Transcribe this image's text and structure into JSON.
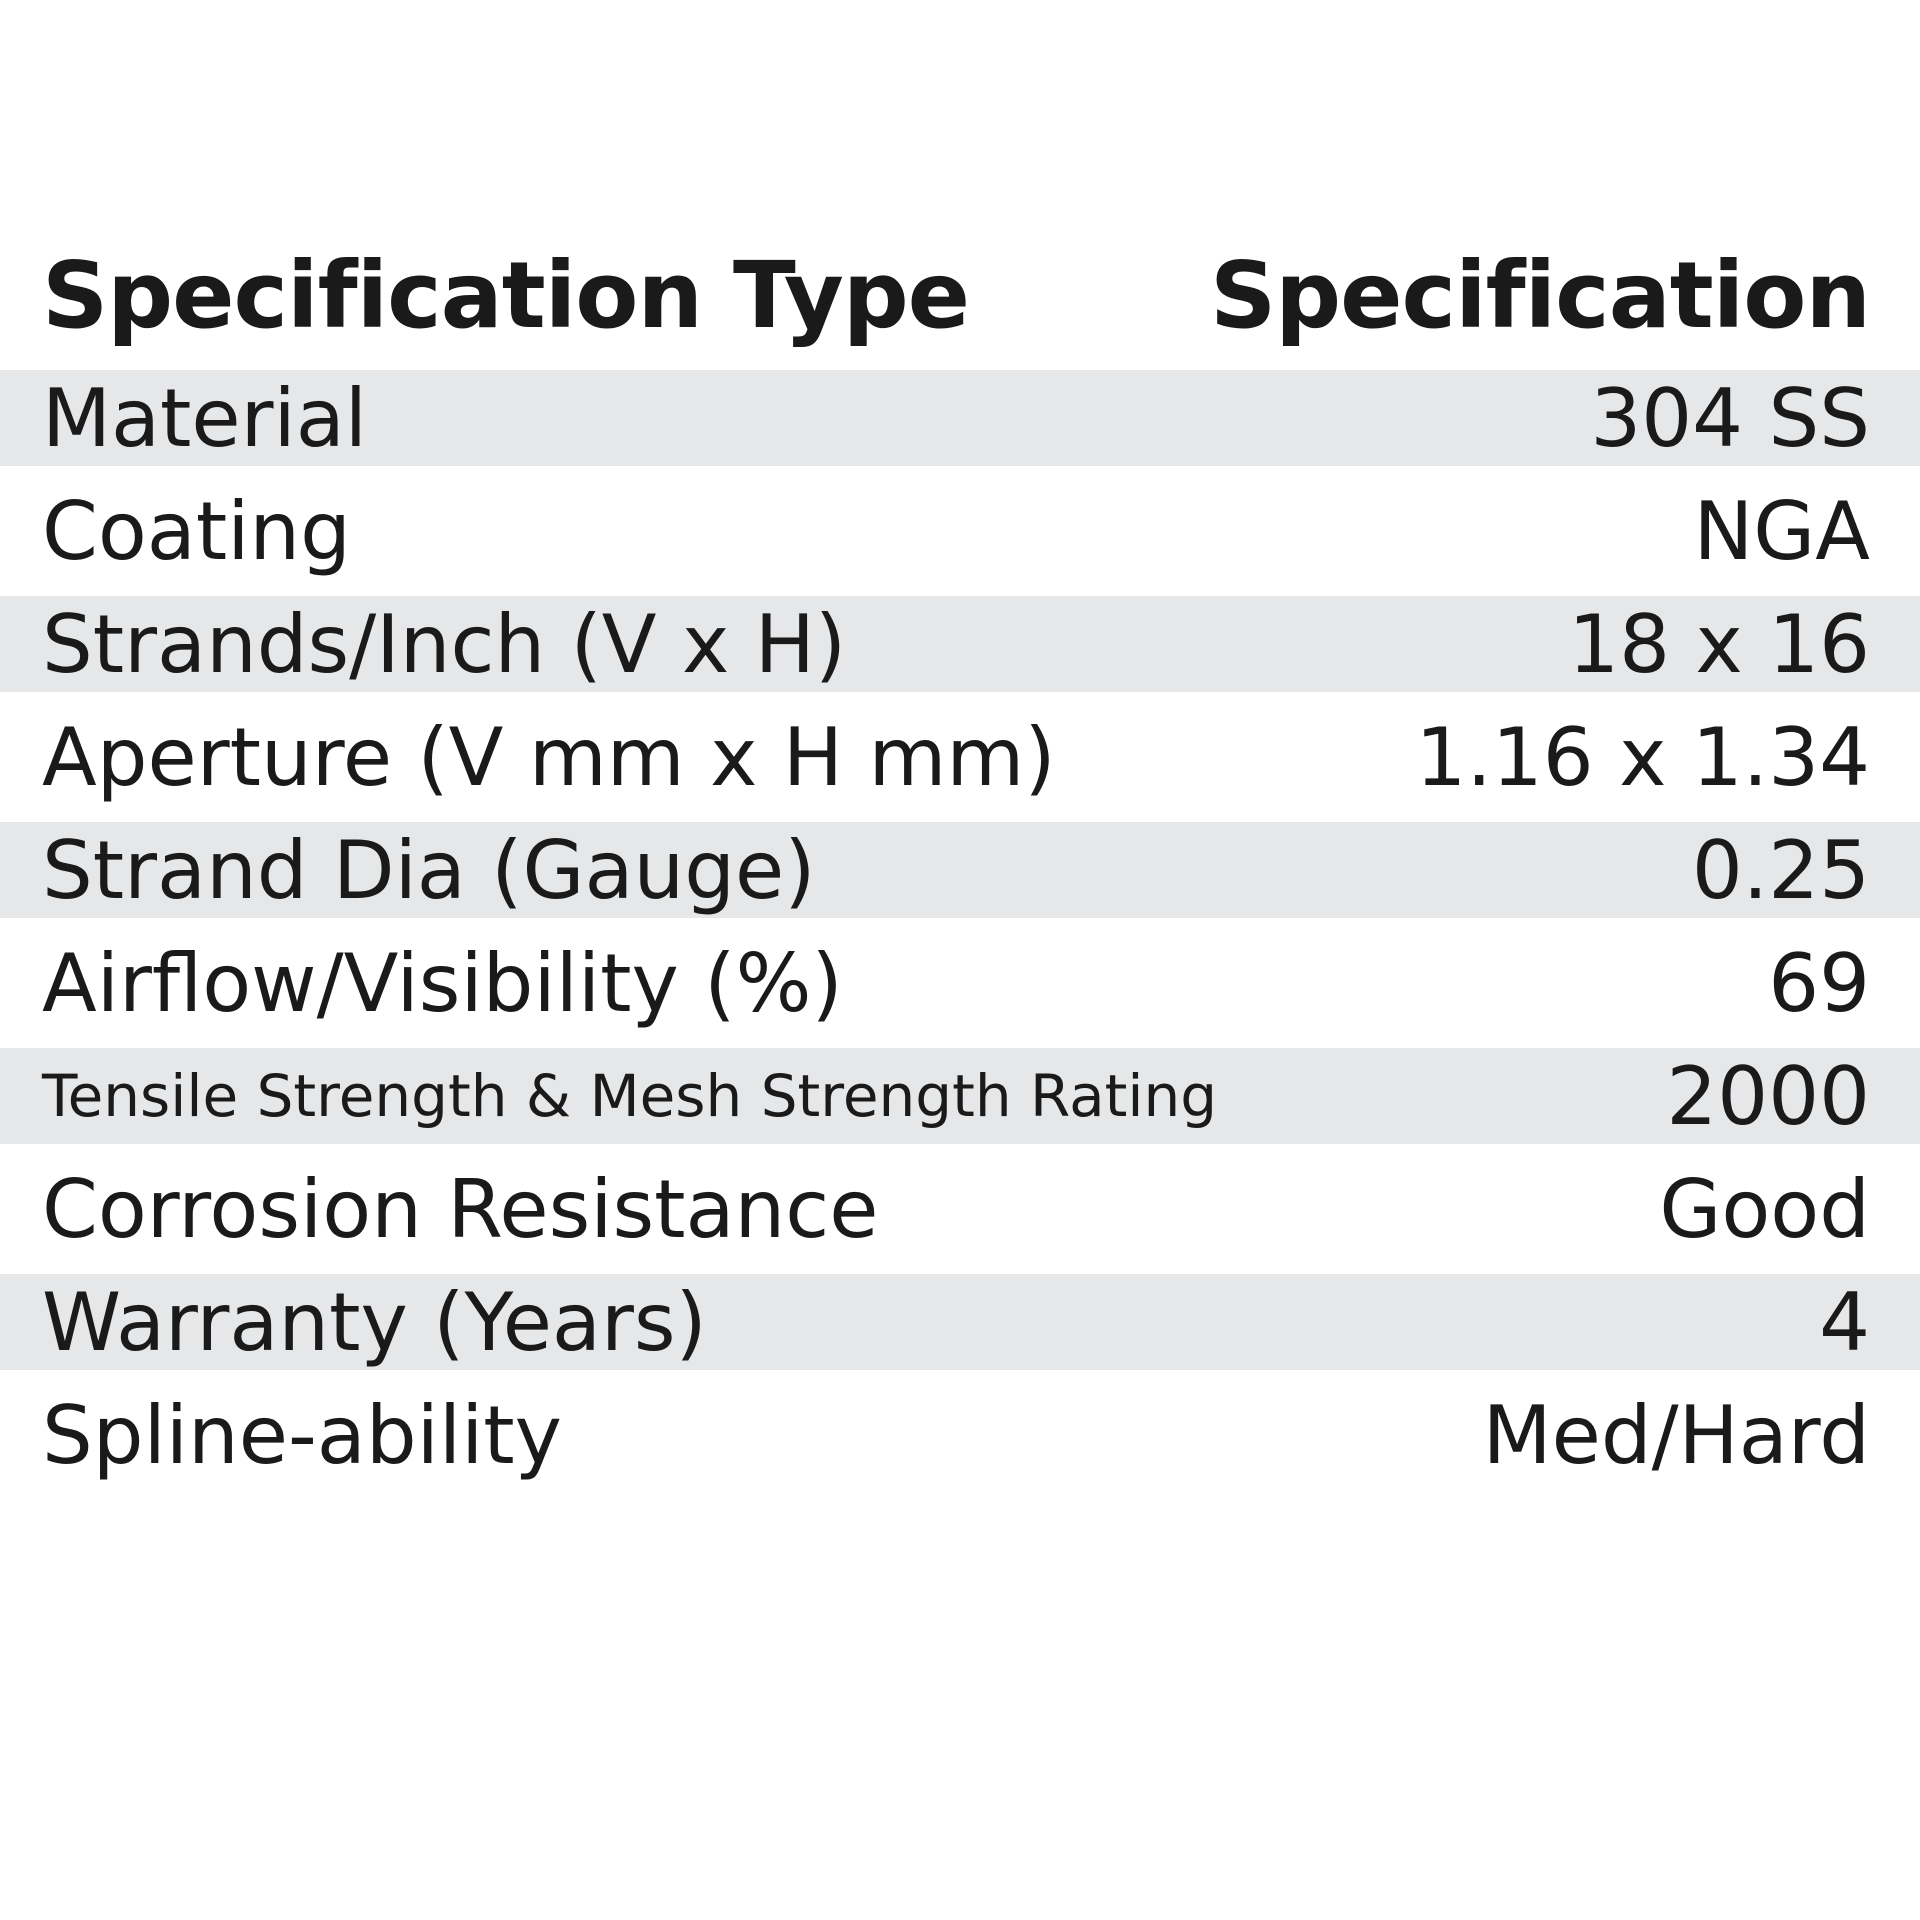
{
  "header": {
    "type_label": "Specification Type",
    "spec_label": "Specification"
  },
  "rows": [
    {
      "label": "Material",
      "value": "304 SS",
      "shaded": true
    },
    {
      "label": "Coating",
      "value": "NGA",
      "shaded": false
    },
    {
      "label": "Strands/Inch (V x H)",
      "value": "18 x 16",
      "shaded": true
    },
    {
      "label": "Aperture (V mm x H mm)",
      "value": "1.16 x 1.34",
      "shaded": false
    },
    {
      "label": "Strand Dia (Gauge)",
      "value": "0.25",
      "shaded": true
    },
    {
      "label": "Airflow/Visibility (%)",
      "value": "69",
      "shaded": false
    },
    {
      "label": "Tensile Strength & Mesh Strength Rating",
      "value": "2000",
      "shaded": true
    },
    {
      "label": "Corrosion Resistance",
      "value": "Good",
      "shaded": false
    },
    {
      "label": "Warranty (Years)",
      "value": "4",
      "shaded": true
    },
    {
      "label": "Spline-ability",
      "value": "Med/Hard",
      "shaded": false
    }
  ],
  "colors": {
    "shade": "#e6e7e8",
    "text": "#1a1a1a",
    "background": "#ffffff"
  }
}
